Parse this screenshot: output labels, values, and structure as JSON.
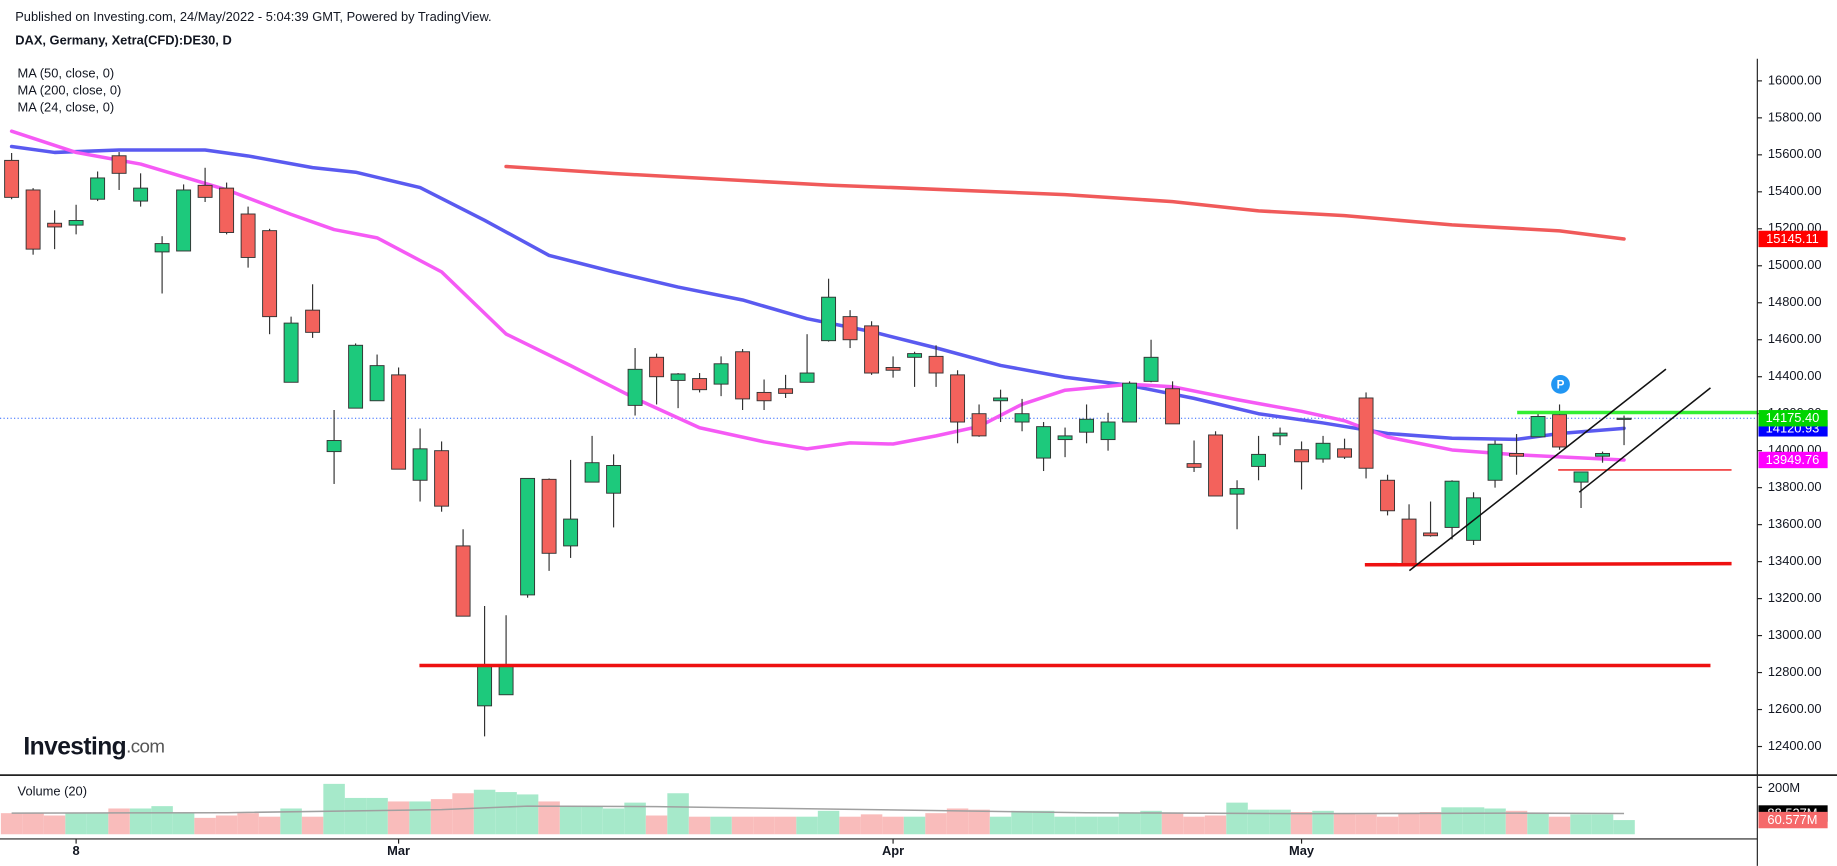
{
  "chart_data": {
    "type": "candlestick",
    "title": "Published on Investing.com, 24/May/2022 - 5:04:39 GMT, Powered by TradingView.",
    "subtitle": "DAX, Germany, Xetra(CFD):DE30, D",
    "logo": [
      "Investing",
      ".com"
    ],
    "marker_label": "P",
    "up_color": "#1dc97c",
    "down_color": "#f3625c",
    "xlim": [
      -0.54,
      81.2
    ],
    "xticks": [
      {
        "value": 3,
        "label": "8"
      },
      {
        "value": 18,
        "label": "Mar"
      },
      {
        "value": 41,
        "label": "Apr"
      },
      {
        "value": 60,
        "label": "May"
      }
    ],
    "ylim": [
      12255,
      16120
    ],
    "yticks": [
      {
        "value": 12400,
        "label": "12400.00"
      },
      {
        "value": 12600,
        "label": "12600.00"
      },
      {
        "value": 12800,
        "label": "12800.00"
      },
      {
        "value": 13000,
        "label": "13000.00"
      },
      {
        "value": 13200,
        "label": "13200.00"
      },
      {
        "value": 13400,
        "label": "13400.00"
      },
      {
        "value": 13600,
        "label": "13600.00"
      },
      {
        "value": 13800,
        "label": "13800.00"
      },
      {
        "value": 14000,
        "label": "14000.00"
      },
      {
        "value": 14200,
        "label": "14200.00"
      },
      {
        "value": 14400,
        "label": "14400.00"
      },
      {
        "value": 14600,
        "label": "14600.00"
      },
      {
        "value": 14800,
        "label": "14800.00"
      },
      {
        "value": 15000,
        "label": "15000.00"
      },
      {
        "value": 15200,
        "label": "15200.00"
      },
      {
        "value": 15400,
        "label": "15400.00"
      },
      {
        "value": 15600,
        "label": "15600.00"
      },
      {
        "value": 15800,
        "label": "15800.00"
      },
      {
        "value": 16000,
        "label": "16000.00"
      }
    ],
    "last_price": {
      "value": 14175.4,
      "label": "14175.40",
      "color": "#00d400"
    },
    "ohlc": [
      {
        "open": 15570,
        "high": 15610,
        "low": 15360,
        "close": 15370
      },
      {
        "open": 15410,
        "high": 15420,
        "low": 15060,
        "close": 15090
      },
      {
        "open": 15230,
        "high": 15300,
        "low": 15090,
        "close": 15210
      },
      {
        "open": 15220,
        "high": 15330,
        "low": 15170,
        "close": 15245
      },
      {
        "open": 15360,
        "high": 15510,
        "low": 15350,
        "close": 15475
      },
      {
        "open": 15595,
        "high": 15615,
        "low": 15410,
        "close": 15500
      },
      {
        "open": 15350,
        "high": 15500,
        "low": 15320,
        "close": 15420
      },
      {
        "open": 15075,
        "high": 15160,
        "low": 14850,
        "close": 15120
      },
      {
        "open": 15080,
        "high": 15440,
        "low": 15080,
        "close": 15410
      },
      {
        "open": 15435,
        "high": 15530,
        "low": 15345,
        "close": 15370
      },
      {
        "open": 15420,
        "high": 15450,
        "low": 15170,
        "close": 15180
      },
      {
        "open": 15280,
        "high": 15320,
        "low": 14990,
        "close": 15045
      },
      {
        "open": 15190,
        "high": 15200,
        "low": 14630,
        "close": 14725
      },
      {
        "open": 14370,
        "high": 14725,
        "low": 14370,
        "close": 14690
      },
      {
        "open": 14760,
        "high": 14900,
        "low": 14610,
        "close": 14640
      },
      {
        "open": 13995,
        "high": 14220,
        "low": 13820,
        "close": 14055
      },
      {
        "open": 14230,
        "high": 14580,
        "low": 14230,
        "close": 14570
      },
      {
        "open": 14270,
        "high": 14520,
        "low": 14270,
        "close": 14460
      },
      {
        "open": 14410,
        "high": 14450,
        "low": 13900,
        "close": 13900
      },
      {
        "open": 13840,
        "high": 14120,
        "low": 13725,
        "close": 14010
      },
      {
        "open": 14000,
        "high": 14050,
        "low": 13670,
        "close": 13700
      },
      {
        "open": 13485,
        "high": 13575,
        "low": 13105,
        "close": 13105
      },
      {
        "open": 12620,
        "high": 13160,
        "low": 12455,
        "close": 12840
      },
      {
        "open": 12680,
        "high": 13110,
        "low": 12680,
        "close": 12835
      },
      {
        "open": 13220,
        "high": 13850,
        "low": 13205,
        "close": 13850
      },
      {
        "open": 13845,
        "high": 13850,
        "low": 13350,
        "close": 13445
      },
      {
        "open": 13485,
        "high": 13950,
        "low": 13420,
        "close": 13630
      },
      {
        "open": 13830,
        "high": 14080,
        "low": 13830,
        "close": 13935
      },
      {
        "open": 13770,
        "high": 13980,
        "low": 13585,
        "close": 13920
      },
      {
        "open": 14245,
        "high": 14555,
        "low": 14190,
        "close": 14440
      },
      {
        "open": 14505,
        "high": 14525,
        "low": 14250,
        "close": 14400
      },
      {
        "open": 14380,
        "high": 14420,
        "low": 14230,
        "close": 14415
      },
      {
        "open": 14390,
        "high": 14420,
        "low": 14315,
        "close": 14330
      },
      {
        "open": 14360,
        "high": 14510,
        "low": 14295,
        "close": 14470
      },
      {
        "open": 14535,
        "high": 14550,
        "low": 14220,
        "close": 14280
      },
      {
        "open": 14315,
        "high": 14385,
        "low": 14220,
        "close": 14270
      },
      {
        "open": 14335,
        "high": 14410,
        "low": 14285,
        "close": 14310
      },
      {
        "open": 14370,
        "high": 14630,
        "low": 14370,
        "close": 14420
      },
      {
        "open": 14595,
        "high": 14930,
        "low": 14590,
        "close": 14830
      },
      {
        "open": 14725,
        "high": 14760,
        "low": 14555,
        "close": 14600
      },
      {
        "open": 14675,
        "high": 14700,
        "low": 14410,
        "close": 14420
      },
      {
        "open": 14450,
        "high": 14510,
        "low": 14395,
        "close": 14435
      },
      {
        "open": 14505,
        "high": 14535,
        "low": 14345,
        "close": 14525
      },
      {
        "open": 14510,
        "high": 14570,
        "low": 14345,
        "close": 14420
      },
      {
        "open": 14410,
        "high": 14435,
        "low": 14040,
        "close": 14155
      },
      {
        "open": 14200,
        "high": 14250,
        "low": 14075,
        "close": 14080
      },
      {
        "open": 14270,
        "high": 14330,
        "low": 14155,
        "close": 14285
      },
      {
        "open": 14155,
        "high": 14280,
        "low": 14105,
        "close": 14200
      },
      {
        "open": 13960,
        "high": 14155,
        "low": 13890,
        "close": 14130
      },
      {
        "open": 14060,
        "high": 14125,
        "low": 13965,
        "close": 14080
      },
      {
        "open": 14100,
        "high": 14250,
        "low": 14040,
        "close": 14170
      },
      {
        "open": 14060,
        "high": 14205,
        "low": 14000,
        "close": 14155
      },
      {
        "open": 14155,
        "high": 14375,
        "low": 14155,
        "close": 14365
      },
      {
        "open": 14375,
        "high": 14600,
        "low": 14370,
        "close": 14505
      },
      {
        "open": 14335,
        "high": 14375,
        "low": 14145,
        "close": 14145
      },
      {
        "open": 13930,
        "high": 14055,
        "low": 13885,
        "close": 13910
      },
      {
        "open": 14085,
        "high": 14105,
        "low": 13755,
        "close": 13755
      },
      {
        "open": 13765,
        "high": 13840,
        "low": 13575,
        "close": 13795
      },
      {
        "open": 13915,
        "high": 14080,
        "low": 13840,
        "close": 13980
      },
      {
        "open": 14080,
        "high": 14125,
        "low": 14030,
        "close": 14095
      },
      {
        "open": 14005,
        "high": 14050,
        "low": 13790,
        "close": 13940
      },
      {
        "open": 13955,
        "high": 14080,
        "low": 13935,
        "close": 14040
      },
      {
        "open": 14010,
        "high": 14065,
        "low": 13955,
        "close": 13965
      },
      {
        "open": 14285,
        "high": 14315,
        "low": 13850,
        "close": 13905
      },
      {
        "open": 13840,
        "high": 13870,
        "low": 13650,
        "close": 13675
      },
      {
        "open": 13630,
        "high": 13710,
        "low": 13375,
        "close": 13385
      },
      {
        "open": 13555,
        "high": 13725,
        "low": 13535,
        "close": 13540
      },
      {
        "open": 13585,
        "high": 13840,
        "low": 13520,
        "close": 13835
      },
      {
        "open": 13515,
        "high": 13775,
        "low": 13490,
        "close": 13745
      },
      {
        "open": 13840,
        "high": 14055,
        "low": 13800,
        "close": 14035
      },
      {
        "open": 13985,
        "high": 14090,
        "low": 13870,
        "close": 13970
      },
      {
        "open": 14075,
        "high": 14205,
        "low": 14075,
        "close": 14185
      },
      {
        "open": 14195,
        "high": 14250,
        "low": 14005,
        "close": 14020
      },
      {
        "open": 13830,
        "high": 13885,
        "low": 13690,
        "close": 13885
      },
      {
        "open": 13970,
        "high": 13995,
        "low": 13935,
        "close": 13985
      },
      {
        "open": 14170,
        "high": 14190,
        "low": 14030,
        "close": 14175.4
      }
    ],
    "series": [
      {
        "name": "MA (50, close, 0)",
        "color": "#5a5af0",
        "x": [
          0,
          2,
          5,
          9,
          11,
          14,
          16,
          19,
          22,
          25,
          28,
          31,
          34,
          37,
          40,
          43,
          46,
          49,
          52,
          55,
          58,
          61,
          64,
          67,
          70,
          72,
          75
        ],
        "values": [
          15645,
          15613,
          15626,
          15626,
          15594,
          15531,
          15506,
          15423,
          15246,
          15056,
          14967,
          14885,
          14815,
          14714,
          14644,
          14556,
          14461,
          14397,
          14353,
          14283,
          14200,
          14150,
          14093,
          14067,
          14061,
          14093,
          14120.93
        ],
        "last_label": {
          "value": 14120.93,
          "label": "14120.93"
        },
        "label_color": "#0000ff"
      },
      {
        "name": "MA (200, close, 0)",
        "color": "#f05a5a",
        "x": [
          23,
          28,
          38,
          41,
          49,
          54,
          58,
          62,
          67,
          72,
          75
        ],
        "values": [
          15537,
          15499,
          15436,
          15423,
          15385,
          15347,
          15297,
          15271,
          15221,
          15189,
          15145.11
        ],
        "last_label": {
          "value": 15145.11,
          "label": "15145.11"
        },
        "label_color": "#ff0000"
      },
      {
        "name": "MA (24, close, 0)",
        "color": "#f55af5",
        "x": [
          0,
          3,
          6,
          10,
          13,
          15,
          17,
          20,
          23,
          26,
          29,
          32,
          35,
          37,
          39,
          41,
          43,
          45,
          47,
          49,
          52,
          54,
          57,
          60,
          62,
          64,
          67,
          70,
          75
        ],
        "values": [
          15728,
          15613,
          15550,
          15411,
          15278,
          15196,
          15151,
          14967,
          14631,
          14460,
          14283,
          14124,
          14048,
          14010,
          14042,
          14036,
          14080,
          14131,
          14251,
          14327,
          14359,
          14346,
          14276,
          14213,
          14162,
          14074,
          14004,
          13978,
          13949.76
        ],
        "last_label": {
          "value": 13949.76,
          "label": "13949.76"
        },
        "label_color": "#ff00ff"
      }
    ],
    "volume": {
      "name": "Volume (20)",
      "up_color": "#a6e9ca",
      "down_color": "#f9bcbb",
      "ma_color": "#a0a0a0",
      "ylim": [
        0,
        250
      ],
      "yticks": [
        {
          "value": 200,
          "label": "200M"
        }
      ],
      "values": [
        90,
        90,
        80,
        90,
        90,
        110,
        110,
        120,
        90,
        70,
        80,
        90,
        75,
        110,
        75,
        215,
        155,
        155,
        140,
        140,
        150,
        175,
        190,
        180,
        170,
        140,
        120,
        120,
        110,
        135,
        80,
        175,
        75,
        75,
        75,
        75,
        75,
        75,
        100,
        75,
        85,
        75,
        75,
        90,
        110,
        105,
        75,
        100,
        100,
        75,
        75,
        75,
        90,
        100,
        90,
        75,
        80,
        135,
        105,
        105,
        95,
        100,
        90,
        85,
        75,
        90,
        95,
        115,
        115,
        110,
        100,
        90,
        75,
        85,
        85,
        60.577
      ],
      "ma": {
        "x": [
          0,
          10,
          20,
          24,
          30,
          40,
          50,
          60,
          70,
          75
        ],
        "values": [
          90,
          92,
          105,
          120,
          118,
          105,
          92,
          88,
          90,
          88.527
        ]
      },
      "ma_label": {
        "value": 88.527,
        "label": "88.527M"
      },
      "last_label": {
        "value": 60.577,
        "label": "60.577M"
      }
    }
  }
}
